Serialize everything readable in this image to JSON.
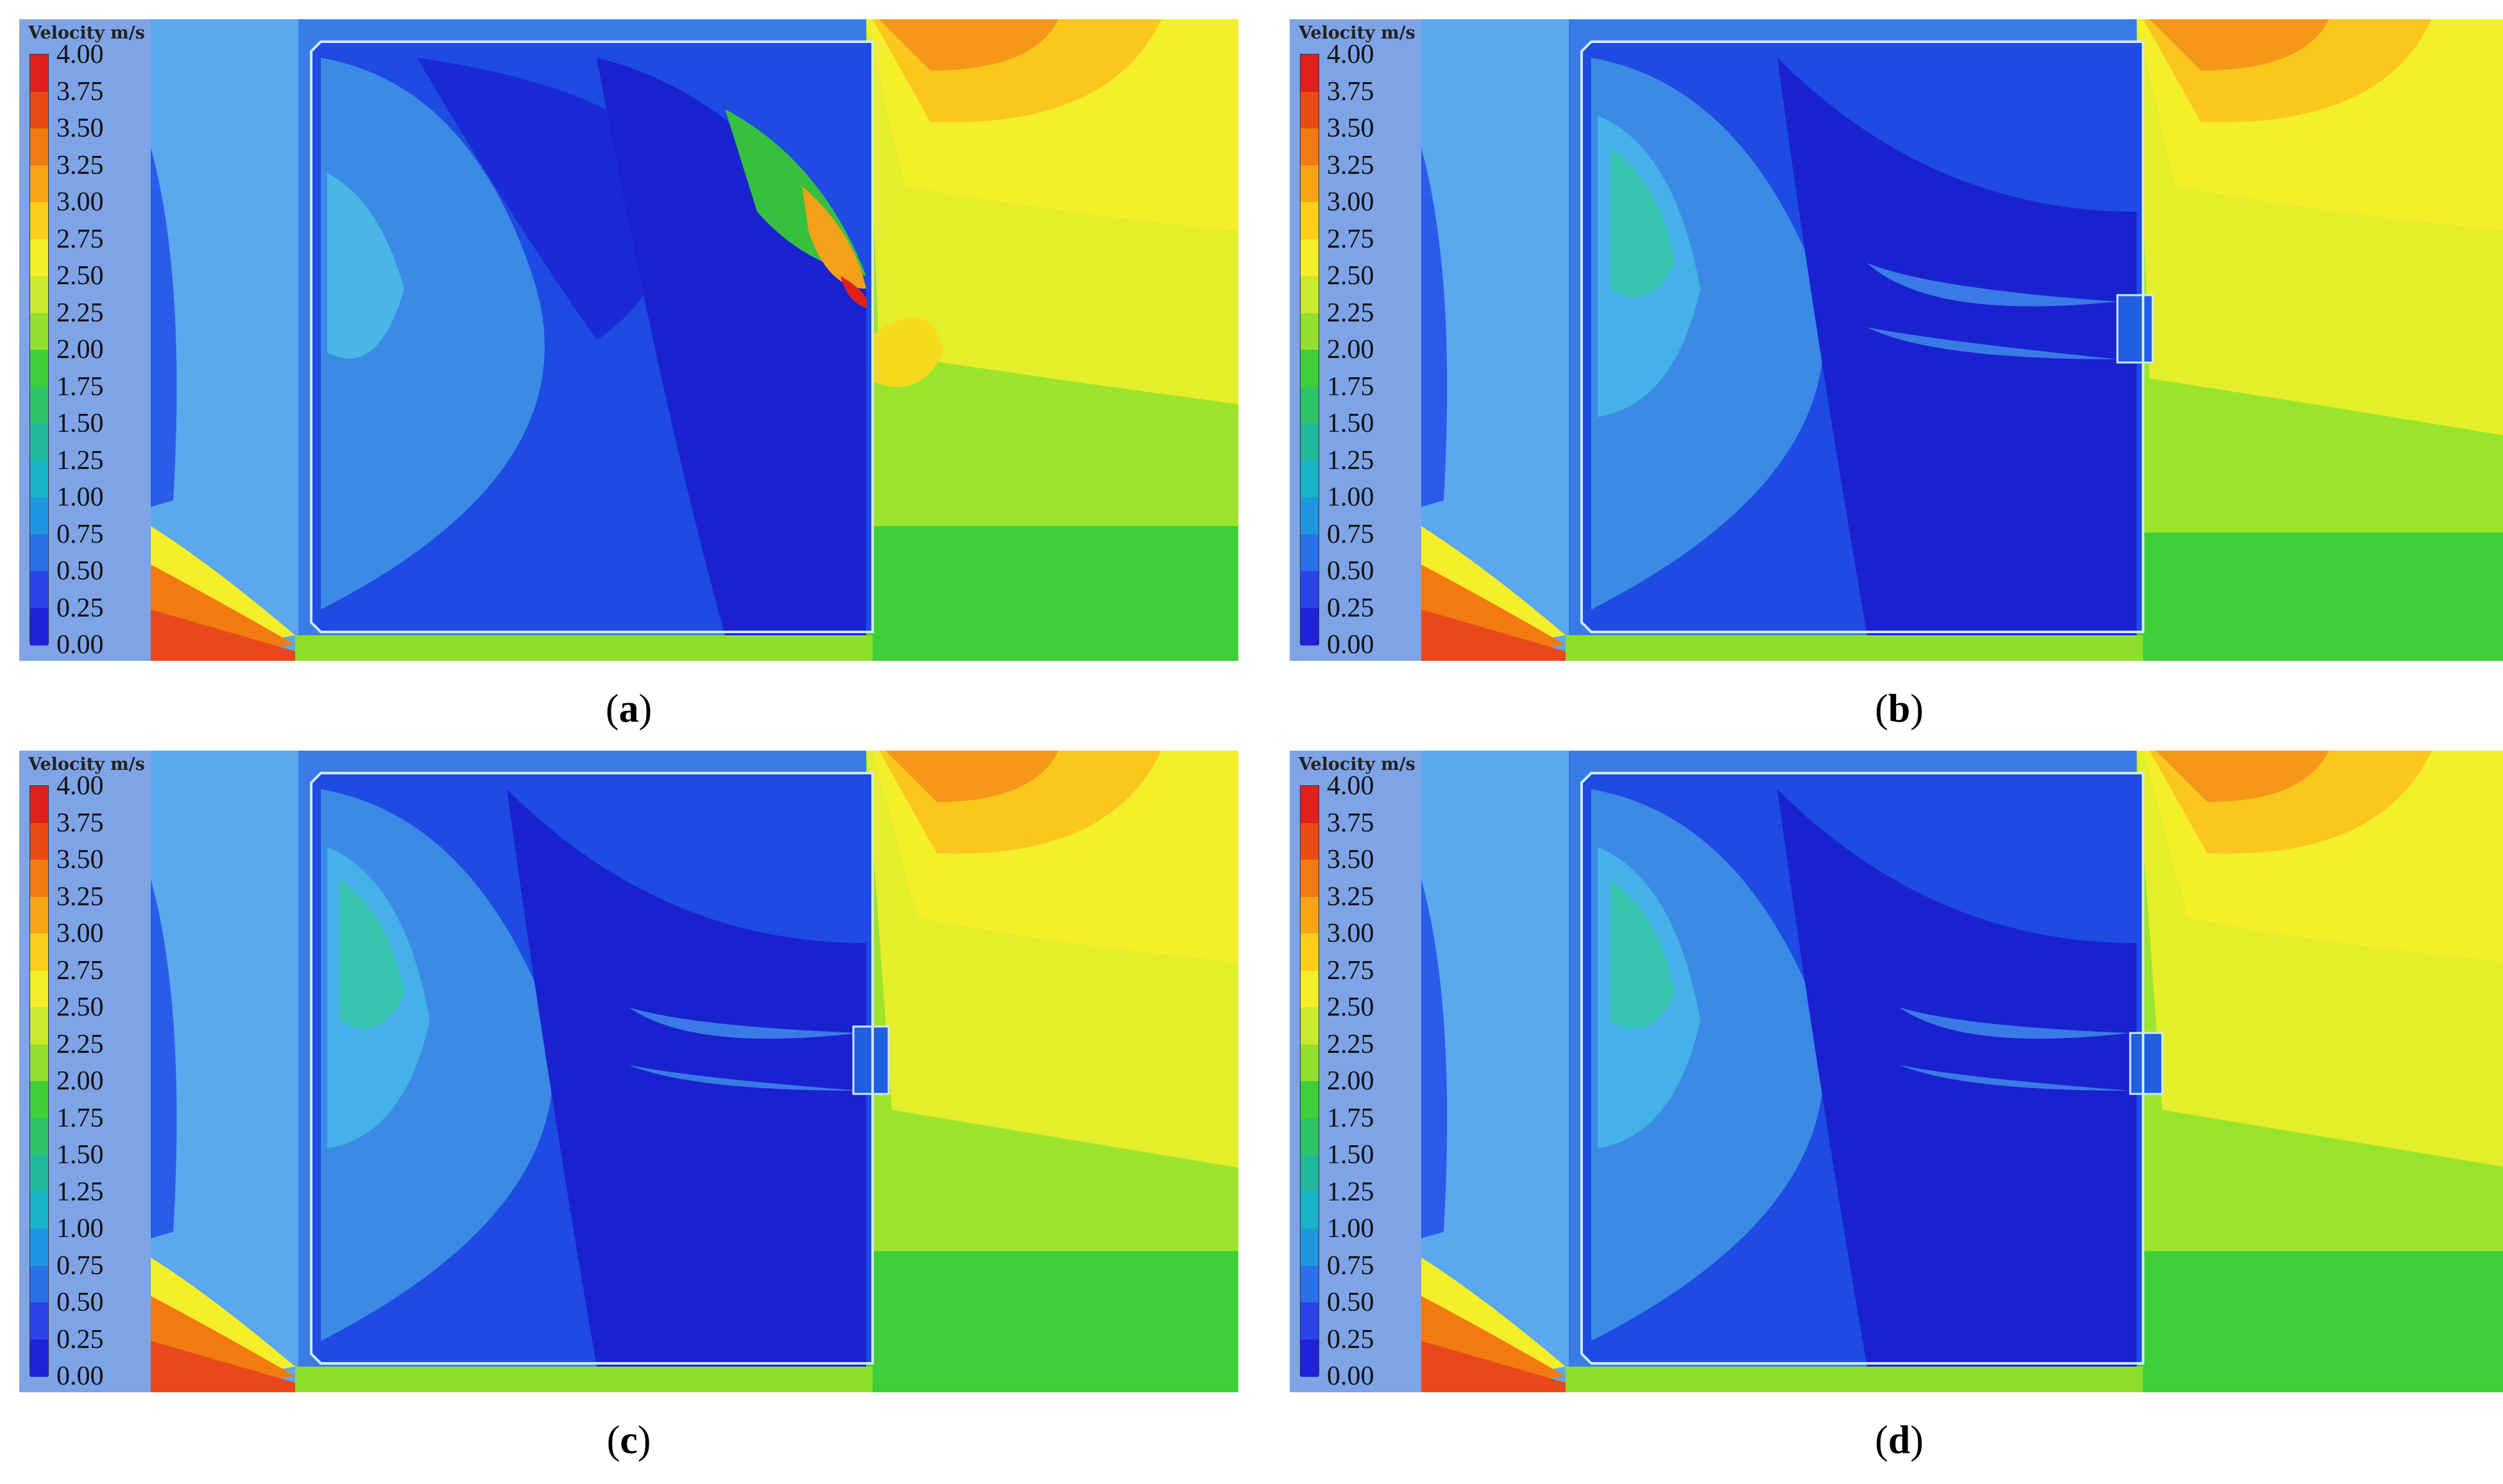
{
  "legend": {
    "title": "Velocity  m/s",
    "ticks": [
      "4.00",
      "3.75",
      "3.50",
      "3.25",
      "3.00",
      "2.75",
      "2.50",
      "2.25",
      "2.00",
      "1.75",
      "1.50",
      "1.25",
      "1.00",
      "0.75",
      "0.50",
      "0.25",
      "0.00"
    ],
    "colors": [
      "#e0201c",
      "#ea4a12",
      "#f27a10",
      "#f7a514",
      "#fbcf1c",
      "#f5ee2a",
      "#ccea2c",
      "#92e02c",
      "#3ecf38",
      "#2cc468",
      "#22b89a",
      "#1ab2c6",
      "#2096e0",
      "#2a70e8",
      "#2a44e8",
      "#1e22d8"
    ]
  },
  "panels": [
    {
      "id": "a",
      "caption": "a"
    },
    {
      "id": "b",
      "caption": "b"
    },
    {
      "id": "c",
      "caption": "c"
    },
    {
      "id": "d",
      "caption": "d"
    }
  ]
}
